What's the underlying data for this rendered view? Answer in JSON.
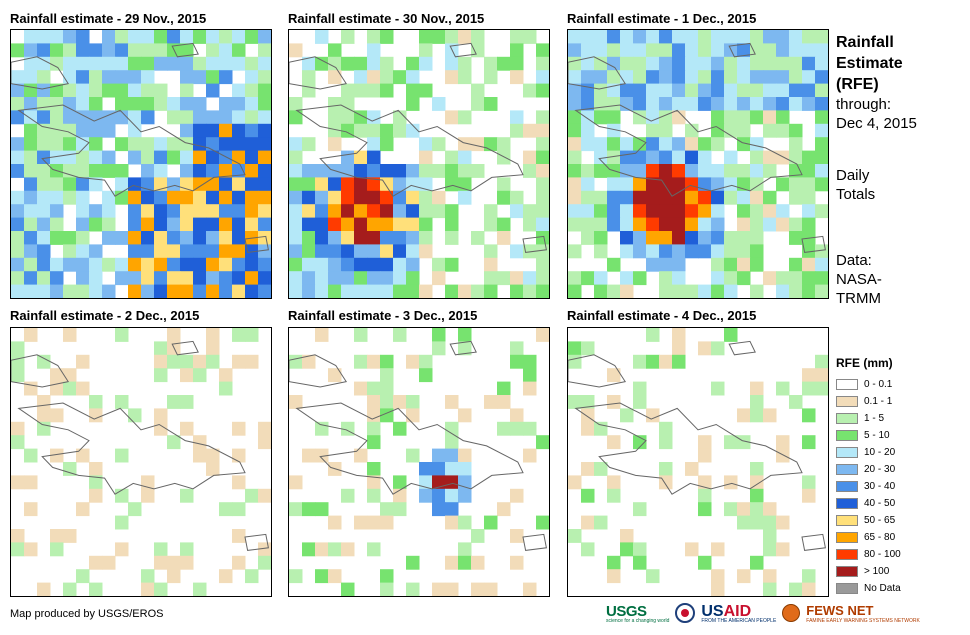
{
  "panels": [
    {
      "title": "Rainfall estimate - 29 Nov., 2015",
      "scheme": "a"
    },
    {
      "title": "Rainfall estimate - 30 Nov., 2015",
      "scheme": "b"
    },
    {
      "title": "Rainfall estimate - 1 Dec., 2015",
      "scheme": "c"
    },
    {
      "title": "Rainfall estimate - 2 Dec., 2015",
      "scheme": "d"
    },
    {
      "title": "Rainfall estimate - 3 Dec., 2015",
      "scheme": "e"
    },
    {
      "title": "Rainfall estimate - 4 Dec., 2015",
      "scheme": "f"
    }
  ],
  "side": {
    "title_line1": "Rainfall",
    "title_line2": "Estimate",
    "title_line3": "(RFE)",
    "through_label": "through:",
    "through_date": "Dec 4, 2015",
    "totals_line1": "Daily",
    "totals_line2": "Totals",
    "data_line1": "Data:",
    "data_line2": "NASA-",
    "data_line3": "TRMM"
  },
  "legend": {
    "title": "RFE (mm)",
    "items": [
      {
        "label": "0 - 0.1",
        "color": "#ffffff"
      },
      {
        "label": "0.1 - 1",
        "color": "#f2dcb9"
      },
      {
        "label": "1 - 5",
        "color": "#b8f0b0"
      },
      {
        "label": "5 - 10",
        "color": "#77e36f"
      },
      {
        "label": "10 - 20",
        "color": "#b4e8f8"
      },
      {
        "label": "20 - 30",
        "color": "#7db8f0"
      },
      {
        "label": "30 - 40",
        "color": "#4a90e8"
      },
      {
        "label": "40 - 50",
        "color": "#1f5fd8"
      },
      {
        "label": "50 - 65",
        "color": "#ffe07a"
      },
      {
        "label": "65 - 80",
        "color": "#ffa500"
      },
      {
        "label": "80 - 100",
        "color": "#ff3b00"
      },
      {
        "label": "> 100",
        "color": "#a51c1c"
      },
      {
        "label": "No Data",
        "color": "#9a9a9a"
      }
    ]
  },
  "credit": "Map produced by USGS/EROS",
  "logos": {
    "usgs": "USGS",
    "usgs_tagline": "science for a changing world",
    "usaid_a": "US",
    "usaid_b": "AID",
    "usaid_tagline": "FROM THE AMERICAN PEOPLE",
    "fews": "FEWS NET",
    "fews_tagline": "FAMINE EARLY WARNING SYSTEMS NETWORK"
  }
}
